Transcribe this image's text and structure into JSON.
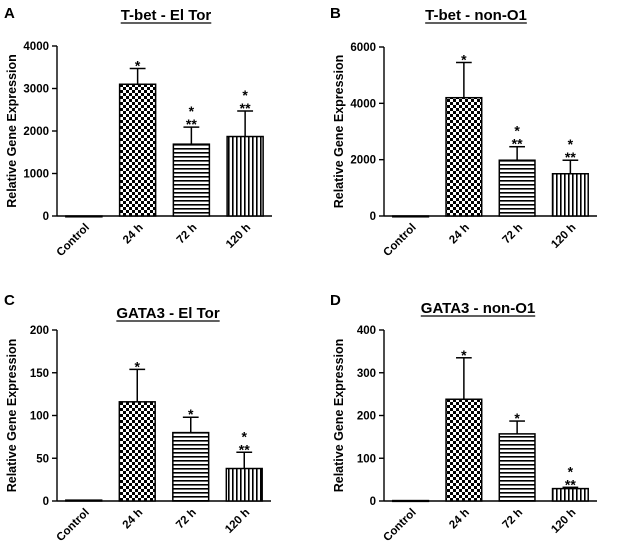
{
  "chart_data": [
    {
      "panel": "A",
      "type": "bar",
      "title": "T-bet - El Tor",
      "ylabel": "Relative Gene Expression",
      "categories": [
        "Control",
        "24 h",
        "72 h",
        "120 h"
      ],
      "values": [
        0,
        3100,
        1690,
        1870
      ],
      "errors": [
        0,
        370,
        400,
        600
      ],
      "significance": [
        [],
        [
          "*"
        ],
        [
          "*",
          "**"
        ],
        [
          "*",
          "**"
        ]
      ],
      "patterns": [
        "none",
        "checker",
        "horizontal",
        "vertical"
      ],
      "ylim": [
        0,
        4000
      ],
      "yticks": [
        0,
        1000,
        2000,
        3000,
        4000
      ],
      "grid": false
    },
    {
      "panel": "B",
      "type": "bar",
      "title": "T-bet - non-O1",
      "ylabel": "Relative Gene Expression",
      "categories": [
        "Control",
        "24 h",
        "72 h",
        "120 h"
      ],
      "values": [
        0,
        4200,
        1980,
        1500
      ],
      "errors": [
        0,
        1250,
        480,
        480
      ],
      "significance": [
        [],
        [
          "*"
        ],
        [
          "*",
          "**"
        ],
        [
          "*",
          "**"
        ]
      ],
      "patterns": [
        "none",
        "checker",
        "horizontal",
        "vertical"
      ],
      "ylim": [
        0,
        6000
      ],
      "yticks": [
        0,
        2000,
        4000,
        6000
      ],
      "grid": false
    },
    {
      "panel": "C",
      "type": "bar",
      "title": "GATA3 - El Tor",
      "ylabel": "Relative Gene Expression",
      "categories": [
        "Control",
        "24 h",
        "72 h",
        "120 h"
      ],
      "values": [
        1,
        116,
        80,
        38
      ],
      "errors": [
        0,
        38,
        18,
        19
      ],
      "significance": [
        [],
        [
          "*"
        ],
        [
          "*"
        ],
        [
          "*",
          "**"
        ]
      ],
      "patterns": [
        "none",
        "checker",
        "horizontal",
        "vertical"
      ],
      "ylim": [
        0,
        200
      ],
      "yticks": [
        0,
        50,
        100,
        150,
        200
      ],
      "grid": false
    },
    {
      "panel": "D",
      "type": "bar",
      "title": "GATA3 - non-O1",
      "ylabel": "Relative Gene Expression",
      "categories": [
        "Control",
        "24 h",
        "72 h",
        "120 h"
      ],
      "values": [
        1,
        238,
        157,
        29
      ],
      "errors": [
        0,
        97,
        30,
        3
      ],
      "significance": [
        [],
        [
          "*"
        ],
        [
          "*"
        ],
        [
          "*",
          "**"
        ]
      ],
      "patterns": [
        "none",
        "checker",
        "horizontal",
        "vertical"
      ],
      "ylim": [
        0,
        400
      ],
      "yticks": [
        0,
        100,
        200,
        300,
        400
      ],
      "grid": false
    }
  ]
}
